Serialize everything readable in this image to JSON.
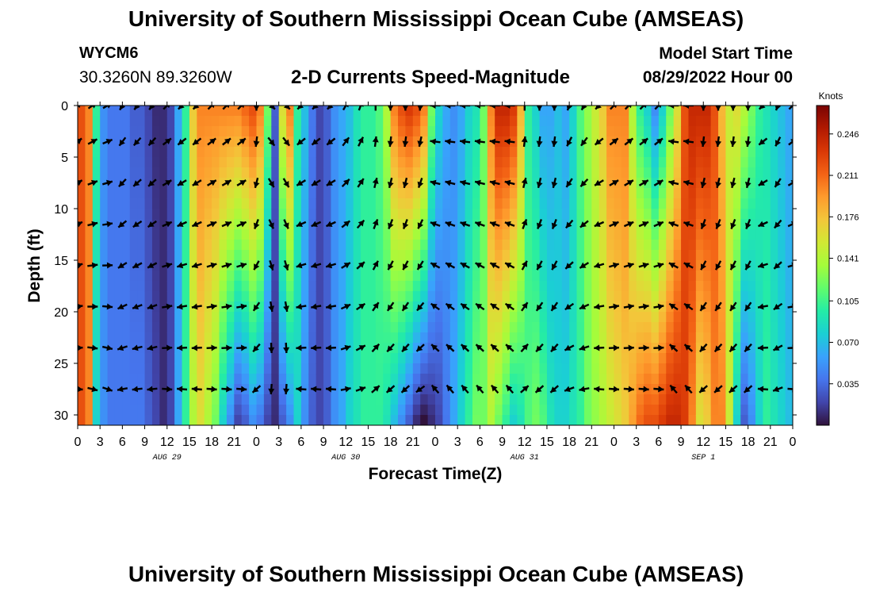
{
  "header": {
    "title": "University of Southern Mississippi Ocean Cube (AMSEAS)",
    "station": "WYCM6",
    "coords": "30.3260N  89.3260W",
    "subtitle": "2-D Currents Speed-Magnitude",
    "model_start_label": "Model Start Time",
    "model_start_value": "08/29/2022 Hour 00"
  },
  "footer": {
    "title": "University of Southern Mississippi Ocean Cube (AMSEAS)"
  },
  "chart_data": {
    "type": "heatmap",
    "xlabel": "Forecast Time(Z)",
    "ylabel": "Depth (ft)",
    "x_ticks": [
      "0",
      "3",
      "6",
      "9",
      "12",
      "15",
      "18",
      "21",
      "0",
      "3",
      "6",
      "9",
      "12",
      "15",
      "18",
      "21",
      "0",
      "3",
      "6",
      "9",
      "12",
      "15",
      "18",
      "21",
      "0",
      "3",
      "6",
      "9",
      "12",
      "15",
      "18",
      "21",
      "0"
    ],
    "day_labels": [
      {
        "label": "AUG 29",
        "hour": 12
      },
      {
        "label": "AUG 30",
        "hour": 36
      },
      {
        "label": "AUG 31",
        "hour": 60
      },
      {
        "label": "SEP 1",
        "hour": 84
      }
    ],
    "xlim": [
      0,
      96
    ],
    "ylim": [
      0,
      31
    ],
    "y_ticks": [
      0,
      5,
      10,
      15,
      20,
      25,
      30
    ],
    "colorbar": {
      "label": "Knots",
      "range": [
        0,
        0.27
      ],
      "ticks": [
        "0.246",
        "0.211",
        "0.176",
        "0.141",
        "0.105",
        "0.070",
        "0.035"
      ],
      "tick_values": [
        0.246,
        0.211,
        0.176,
        0.141,
        0.105,
        0.07,
        0.035
      ],
      "colors": [
        "#30123b",
        "#4145ab",
        "#4675ed",
        "#39a2fc",
        "#1bcfd4",
        "#24eca6",
        "#61fc6c",
        "#a4fc3b",
        "#d1e834",
        "#f3c63a",
        "#fe9b2d",
        "#f36315",
        "#d93806",
        "#b11901",
        "#7a0403"
      ]
    },
    "speed_profile": {
      "hours": [
        0,
        1,
        2,
        3,
        4,
        5,
        6,
        7,
        8,
        9,
        10,
        11,
        12,
        13,
        14,
        15,
        16,
        17,
        18,
        19,
        20,
        21,
        22,
        23,
        24,
        25,
        26,
        27,
        28,
        29,
        30,
        31,
        32,
        33,
        34,
        35,
        36,
        37,
        38,
        39,
        40,
        41,
        42,
        43,
        44,
        45,
        46,
        47,
        48,
        49,
        50,
        51,
        52,
        53,
        54,
        55,
        56,
        57,
        58,
        59,
        60,
        61,
        62,
        63,
        64,
        65,
        66,
        67,
        68,
        69,
        70,
        71,
        72,
        73,
        74,
        75,
        76,
        77,
        78,
        79,
        80,
        81,
        82,
        83,
        84,
        85,
        86,
        87,
        88,
        89,
        90,
        91,
        92,
        93,
        94,
        95,
        96
      ],
      "surface": [
        0.22,
        0.2,
        0.1,
        0.05,
        0.04,
        0.04,
        0.04,
        0.03,
        0.03,
        0.02,
        0.01,
        0.01,
        0.02,
        0.06,
        0.1,
        0.17,
        0.2,
        0.2,
        0.2,
        0.2,
        0.2,
        0.2,
        0.21,
        0.22,
        0.2,
        0.12,
        0.03,
        0.16,
        0.2,
        0.1,
        0.07,
        0.04,
        0.02,
        0.03,
        0.05,
        0.06,
        0.07,
        0.09,
        0.1,
        0.1,
        0.11,
        0.14,
        0.2,
        0.22,
        0.23,
        0.22,
        0.2,
        0.12,
        0.08,
        0.06,
        0.05,
        0.06,
        0.08,
        0.09,
        0.12,
        0.2,
        0.24,
        0.24,
        0.23,
        0.18,
        0.1,
        0.08,
        0.06,
        0.06,
        0.07,
        0.06,
        0.08,
        0.11,
        0.13,
        0.15,
        0.17,
        0.2,
        0.2,
        0.2,
        0.14,
        0.1,
        0.08,
        0.05,
        0.08,
        0.12,
        0.16,
        0.22,
        0.24,
        0.24,
        0.24,
        0.22,
        0.18,
        0.15,
        0.16,
        0.14,
        0.12,
        0.1,
        0.09,
        0.08,
        0.07,
        0.06,
        0.06
      ],
      "bottom": [
        0.22,
        0.2,
        0.08,
        0.05,
        0.04,
        0.04,
        0.04,
        0.04,
        0.04,
        0.03,
        0.02,
        0.01,
        0.02,
        0.06,
        0.1,
        0.14,
        0.16,
        0.14,
        0.12,
        0.08,
        0.05,
        0.02,
        0.03,
        0.05,
        0.04,
        0.02,
        0.01,
        0.03,
        0.05,
        0.08,
        0.05,
        0.03,
        0.02,
        0.03,
        0.05,
        0.06,
        0.08,
        0.09,
        0.1,
        0.1,
        0.1,
        0.09,
        0.07,
        0.05,
        0.03,
        0.01,
        0.0,
        0.01,
        0.02,
        0.04,
        0.06,
        0.08,
        0.1,
        0.12,
        0.12,
        0.14,
        0.12,
        0.1,
        0.08,
        0.09,
        0.11,
        0.12,
        0.11,
        0.09,
        0.08,
        0.08,
        0.09,
        0.1,
        0.12,
        0.13,
        0.14,
        0.15,
        0.16,
        0.17,
        0.19,
        0.21,
        0.22,
        0.22,
        0.23,
        0.24,
        0.24,
        0.23,
        0.2,
        0.16,
        0.17,
        0.2,
        0.2,
        0.15,
        0.08,
        0.03,
        0.05,
        0.08,
        0.1,
        0.09,
        0.08,
        0.07,
        0.06
      ]
    },
    "vector_depths_ft": [
      0,
      3.5,
      7.5,
      11.5,
      15.5,
      19.5,
      23.5,
      27.5
    ],
    "vector_hours": [
      0,
      2,
      4,
      6,
      8,
      10,
      12,
      14,
      16,
      18,
      20,
      22,
      24,
      26,
      28,
      30,
      32,
      34,
      36,
      38,
      40,
      42,
      44,
      46,
      48,
      50,
      52,
      54,
      56,
      58,
      60,
      62,
      64,
      66,
      68,
      70,
      72,
      74,
      76,
      78,
      80,
      82,
      84,
      86,
      88,
      90,
      92,
      94,
      96
    ],
    "vector_directions_deg": [
      45,
      55,
      60,
      210,
      215,
      215,
      45,
      225,
      225,
      45,
      45,
      45,
      180,
      135,
      135,
      225,
      225,
      225,
      30,
      20,
      0,
      180,
      180,
      185,
      270,
      270,
      270,
      270,
      270,
      270,
      0,
      180,
      180,
      200,
      210,
      225,
      45,
      45,
      45,
      45,
      270,
      270,
      180,
      180,
      180,
      180,
      225,
      200,
      45
    ]
  }
}
